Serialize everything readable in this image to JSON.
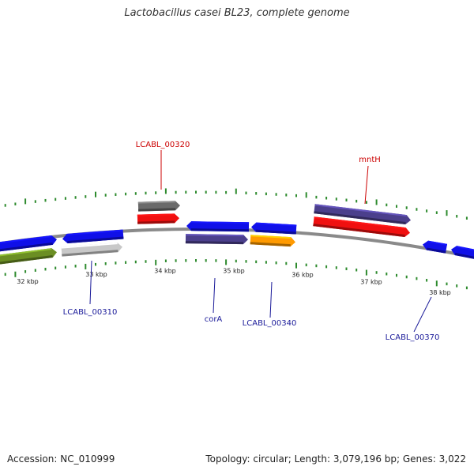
{
  "title": "Lactobacillus casei BL23, complete genome",
  "footer": {
    "accession": "Accession: NC_010999",
    "summary": "Topology: circular; Length: 3,079,196 bp; Genes: 3,022"
  },
  "colors": {
    "backbone": "#8a8a8a",
    "tick": "#2e8b2e",
    "label_red": "#cc0000",
    "label_blue": "#1a1a99",
    "blue": "#1010e8",
    "red": "#f01010",
    "gray": "#6a6a6a",
    "lightgray": "#c8c8c8",
    "olive": "#6b8e23",
    "purple": "#4b3f8c",
    "orange": "#ff9a00"
  },
  "ticks": [
    "32 kbp",
    "33 kbp",
    "34 kbp",
    "35 kbp",
    "36 kbp",
    "37 kbp",
    "38 kbp"
  ],
  "genes": [
    {
      "id": "g1",
      "color": "blue",
      "strand": "+"
    },
    {
      "id": "g2",
      "color": "olive",
      "strand": "+"
    },
    {
      "id": "g3",
      "color": "blue",
      "strand": "-"
    },
    {
      "id": "g4",
      "color": "lightgray",
      "strand": "+",
      "label": "LCABL_00310"
    },
    {
      "id": "g5",
      "color": "gray",
      "strand": "+"
    },
    {
      "id": "g6",
      "color": "red",
      "strand": "+",
      "label": "LCABL_00320"
    },
    {
      "id": "g7",
      "color": "blue",
      "strand": "-"
    },
    {
      "id": "g8",
      "color": "purple",
      "strand": "+",
      "label": "corA"
    },
    {
      "id": "g9",
      "color": "blue",
      "strand": "-"
    },
    {
      "id": "g10",
      "color": "orange",
      "strand": "+",
      "label": "LCABL_00340"
    },
    {
      "id": "g11",
      "color": "purple",
      "strand": "+"
    },
    {
      "id": "g12",
      "color": "red",
      "strand": "+",
      "label": "mntH"
    },
    {
      "id": "g13",
      "color": "blue",
      "strand": "-",
      "label": "LCABL_00370"
    },
    {
      "id": "g14",
      "color": "blue",
      "strand": "-"
    }
  ]
}
